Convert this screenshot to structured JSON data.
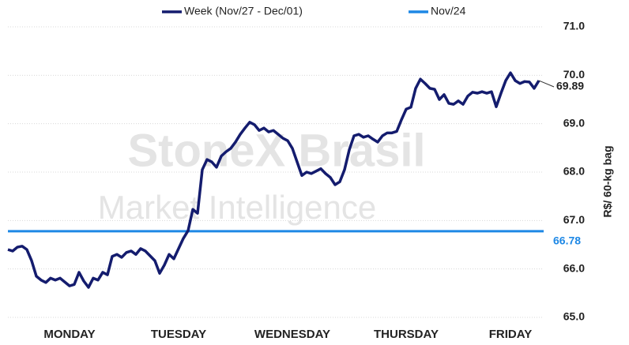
{
  "chart_data": {
    "type": "line",
    "watermark": [
      "StoneX Brasil",
      "Market Intelligence"
    ],
    "y_label": "R$/ 60-kg bag",
    "categories": [
      null,
      null,
      null,
      null,
      null,
      null,
      null,
      null,
      null,
      null,
      null,
      null,
      null,
      "MONDAY",
      null,
      null,
      null,
      null,
      null,
      null,
      null,
      null,
      null,
      null,
      null,
      null,
      null,
      null,
      null,
      null,
      null,
      null,
      null,
      null,
      null,
      null,
      "TUESDAY",
      null,
      null,
      null,
      null,
      null,
      null,
      null,
      null,
      null,
      null,
      null,
      null,
      null,
      null,
      null,
      null,
      null,
      null,
      null,
      null,
      null,
      null,
      null,
      "WEDNESDAY",
      null,
      null,
      null,
      null,
      null,
      null,
      null,
      null,
      null,
      null,
      null,
      null,
      null,
      null,
      null,
      null,
      null,
      null,
      null,
      null,
      null,
      null,
      null,
      "THURSDAY",
      null,
      null,
      null,
      null,
      null,
      null,
      null,
      null,
      null,
      null,
      null,
      null,
      null,
      null,
      null,
      null,
      null,
      null,
      null,
      null,
      null,
      "FRIDAY",
      null,
      null,
      null,
      null,
      null,
      null
    ],
    "series": [
      {
        "name": "Week (Nov/27 - Dec/01)",
        "color": "#141c6e",
        "values": [
          66.4,
          66.37,
          66.45,
          66.47,
          66.4,
          66.17,
          65.85,
          65.77,
          65.72,
          65.81,
          65.77,
          65.81,
          65.73,
          65.65,
          65.68,
          65.93,
          65.75,
          65.62,
          65.81,
          65.77,
          65.93,
          65.88,
          66.26,
          66.3,
          66.24,
          66.34,
          66.37,
          66.3,
          66.42,
          66.37,
          66.27,
          66.17,
          65.91,
          66.08,
          66.3,
          66.21,
          66.42,
          66.63,
          66.79,
          67.23,
          67.15,
          68.05,
          68.26,
          68.21,
          68.1,
          68.33,
          68.42,
          68.49,
          68.62,
          68.78,
          68.91,
          69.03,
          68.98,
          68.86,
          68.91,
          68.83,
          68.86,
          68.78,
          68.7,
          68.65,
          68.49,
          68.21,
          67.93,
          68.0,
          67.97,
          68.02,
          68.07,
          67.97,
          67.89,
          67.74,
          67.8,
          68.05,
          68.46,
          68.75,
          68.78,
          68.72,
          68.75,
          68.68,
          68.62,
          68.75,
          68.81,
          68.81,
          68.84,
          69.08,
          69.3,
          69.34,
          69.73,
          69.92,
          69.83,
          69.73,
          69.71,
          69.5,
          69.6,
          69.42,
          69.4,
          69.47,
          69.4,
          69.57,
          69.65,
          69.63,
          69.66,
          69.63,
          69.66,
          69.35,
          69.63,
          69.89,
          70.05,
          69.89,
          69.83,
          69.87,
          69.86,
          69.73,
          69.89
        ]
      }
    ],
    "reference": {
      "name": "Nov/24",
      "color": "#1e88e5",
      "value": 66.78
    },
    "ylim": [
      65,
      71
    ],
    "yticks": [
      {
        "value": 65,
        "label": "65.0"
      },
      {
        "value": 66,
        "label": "66.0"
      },
      {
        "value": 67,
        "label": "67.0"
      },
      {
        "value": 68,
        "label": "68.0"
      },
      {
        "value": 69,
        "label": "69.0"
      },
      {
        "value": 70,
        "label": "70.0"
      },
      {
        "value": 71,
        "label": "71.0"
      }
    ],
    "grid": true
  }
}
